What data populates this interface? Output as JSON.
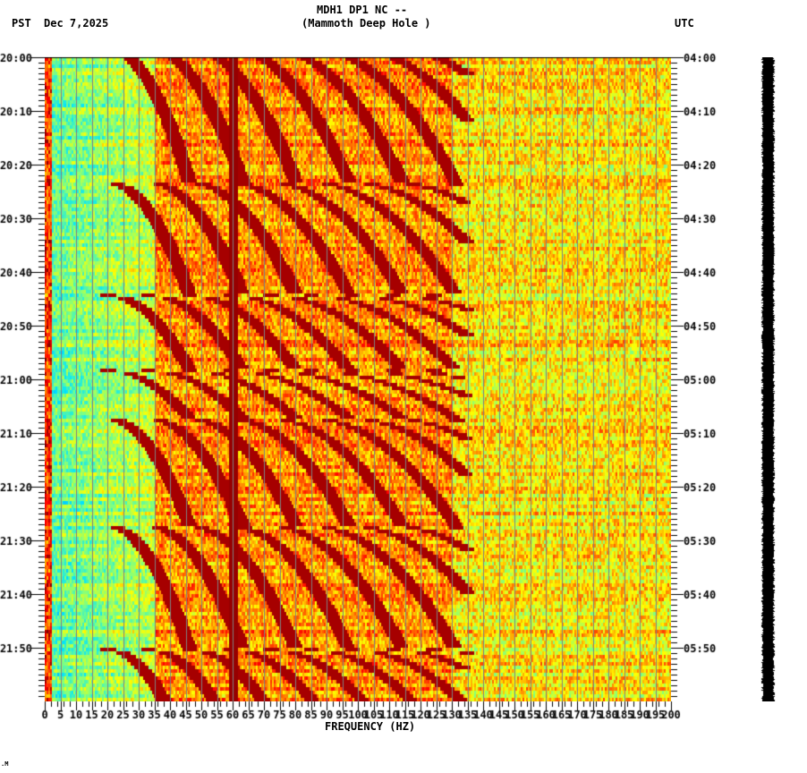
{
  "header": {
    "station_title": "MDH1 DP1 NC --",
    "station_name": "(Mammoth Deep Hole )",
    "left_timezone": "PST",
    "date": "Dec 7,2025",
    "right_timezone": "UTC"
  },
  "footer": {
    "mark": ".M"
  },
  "colors": {
    "low": "#0050ff",
    "mid_low": "#00e5ff",
    "mid": "#ffff00",
    "mid_high": "#ff8000",
    "high": "#800000",
    "grid": "#808080",
    "seismogram": "#000000"
  },
  "chart_data": {
    "type": "heatmap",
    "title": "MDH1 DP1 NC -- (Mammoth Deep Hole )",
    "xlabel": "FREQUENCY (HZ)",
    "ylabel_left": "PST",
    "ylabel_right": "UTC",
    "xlim": [
      0,
      200
    ],
    "x_ticks": [
      0,
      5,
      10,
      15,
      20,
      25,
      30,
      35,
      40,
      45,
      50,
      55,
      60,
      65,
      70,
      75,
      80,
      85,
      90,
      95,
      100,
      105,
      110,
      115,
      120,
      125,
      130,
      135,
      140,
      145,
      150,
      155,
      160,
      165,
      170,
      175,
      180,
      185,
      190,
      195,
      200
    ],
    "y_ticks_left": [
      "20:00",
      "20:10",
      "20:20",
      "20:30",
      "20:40",
      "20:50",
      "21:00",
      "21:10",
      "21:20",
      "21:30",
      "21:40",
      "21:50"
    ],
    "y_ticks_right": [
      "04:00",
      "04:10",
      "04:20",
      "04:30",
      "04:40",
      "04:50",
      "05:00",
      "05:10",
      "05:20",
      "05:30",
      "05:40",
      "05:50"
    ],
    "time_span_minutes": 120,
    "grid": "vertical lines every 5 Hz",
    "features": {
      "persistent_line_hz": 60,
      "low_freq_band_hz": [
        0,
        35
      ],
      "low_freq_band_level": "low (blue/cyan)",
      "high_freq_band_level": "moderate (yellow/green)",
      "sweep_cycle_minutes": [
        20,
        20,
        12,
        14,
        18,
        18,
        16
      ],
      "sweep_resets_minutes_from_start": [
        23,
        44,
        58,
        67,
        87,
        110
      ],
      "sweep_description": "Repeating downward-curving chirp harmonics (dark red) reset at discontinuities, harmonics spaced ~13 Hz"
    },
    "colorscale": [
      "#0050ff",
      "#00e5ff",
      "#80ff80",
      "#ffff00",
      "#ff8000",
      "#ff0000",
      "#800000"
    ]
  }
}
